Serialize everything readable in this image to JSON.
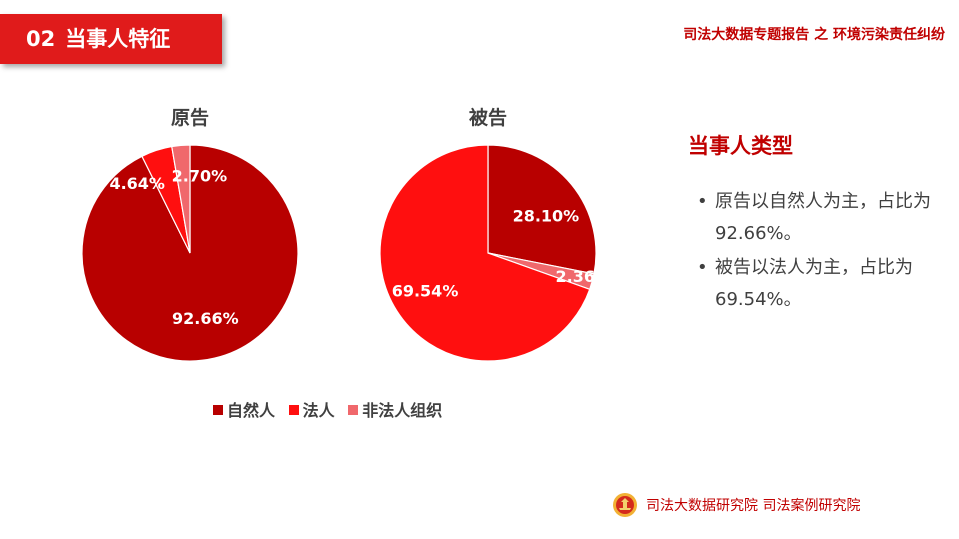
{
  "header": {
    "section_number": "02",
    "section_title": "当事人特征",
    "report_title": "司法大数据专题报告 之 环境污染责任纠纷"
  },
  "colors": {
    "natural_person": "#b80000",
    "legal_person": "#ff0f0f",
    "unincorporated_org": "#f0686c",
    "accent": "#e01b1b"
  },
  "chart_data": [
    {
      "type": "pie",
      "title": "原告",
      "slices": [
        {
          "label": "自然人",
          "value": 92.66,
          "display": "92.66%"
        },
        {
          "label": "法人",
          "value": 4.64,
          "display": "4.64%"
        },
        {
          "label": "非法人组织",
          "value": 2.7,
          "display": "2.70%"
        }
      ]
    },
    {
      "type": "pie",
      "title": "被告",
      "slices": [
        {
          "label": "自然人",
          "value": 28.1,
          "display": "28.10%"
        },
        {
          "label": "非法人组织",
          "value": 2.36,
          "display": "2.36%"
        },
        {
          "label": "法人",
          "value": 69.54,
          "display": "69.54%"
        }
      ]
    }
  ],
  "legend": {
    "items": [
      "自然人",
      "法人",
      "非法人组织"
    ]
  },
  "side": {
    "title": "当事人类型",
    "bullets": [
      "原告以自然人为主，占比为92.66%。",
      "被告以法人为主，占比为69.54%。"
    ]
  },
  "footer": {
    "text": "司法大数据研究院  司法案例研究院",
    "logo_icon": "court-emblem-icon"
  }
}
